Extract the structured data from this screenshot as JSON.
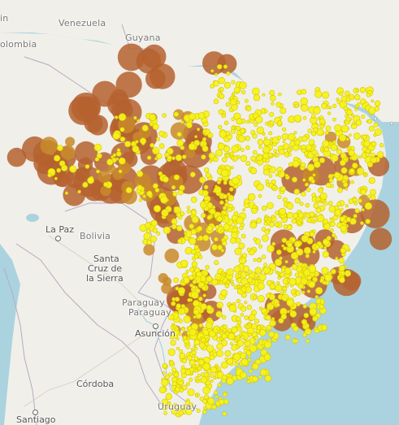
{
  "map": {
    "colors": {
      "water": "#aad3df",
      "land": "#f1efe9",
      "brazil": "#f1efe9",
      "border": "#b8a9c4",
      "marker_large": "#b5622f",
      "marker_mid": "#c98a2a",
      "marker_small": "#f5f21a",
      "marker_outline": "#d4c400"
    },
    "labels": {
      "venezuela": "Venezuela",
      "colombia": "olombia",
      "guyana": "Guyana",
      "la_paz": "La Paz",
      "bolivia": "Bolivia",
      "santa_cruz_1": "Santa",
      "santa_cruz_2": "Cruz de",
      "santa_cruz_3": "la Sierra",
      "paraguay_1": "Paraguay",
      "paraguay_2": "Paraguay",
      "asuncion": "Asunción",
      "cordoba": "Córdoba",
      "uruguay": "Uruguay",
      "santiago": "Santiago",
      "edge_top_left": "in"
    }
  }
}
